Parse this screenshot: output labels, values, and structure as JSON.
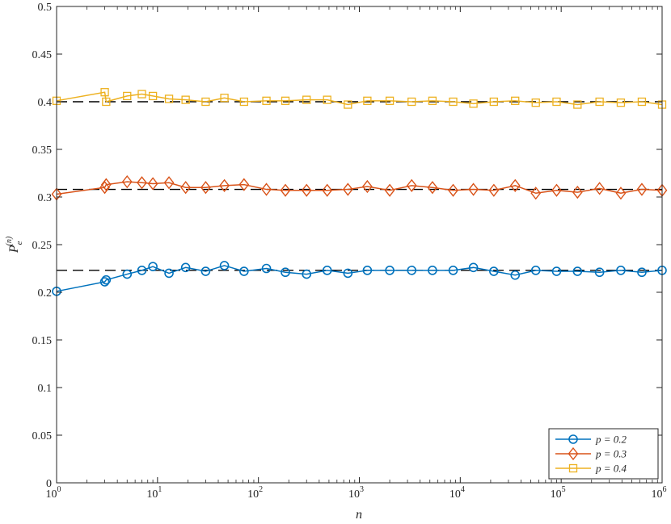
{
  "chart_data": {
    "type": "line",
    "title": "",
    "xlabel": "n",
    "ylabel": "P_e^(n)",
    "xscale": "log",
    "xlim": [
      1,
      1000000
    ],
    "ylim": [
      0,
      0.5
    ],
    "grid": false,
    "legend_position": "bottom-right",
    "x_ticks": [
      1,
      10,
      100,
      1000,
      10000,
      100000,
      1000000
    ],
    "x_tick_labels": [
      {
        "base": "10",
        "exp": "0"
      },
      {
        "base": "10",
        "exp": "1"
      },
      {
        "base": "10",
        "exp": "2"
      },
      {
        "base": "10",
        "exp": "3"
      },
      {
        "base": "10",
        "exp": "4"
      },
      {
        "base": "10",
        "exp": "5"
      },
      {
        "base": "10",
        "exp": "6"
      }
    ],
    "y_ticks": [
      0,
      0.05,
      0.1,
      0.15,
      0.2,
      0.25,
      0.3,
      0.35,
      0.4,
      0.45,
      0.5
    ],
    "y_tick_labels": [
      "0",
      "0.05",
      "0.1",
      "0.15",
      "0.2",
      "0.25",
      "0.3",
      "0.35",
      "0.4",
      "0.45",
      "0.5"
    ],
    "x": [
      1,
      3,
      3.1,
      5,
      7,
      9,
      13,
      19,
      30,
      46,
      72,
      120,
      185,
      300,
      480,
      770,
      1200,
      2000,
      3300,
      5300,
      8500,
      13500,
      21500,
      35000,
      56000,
      90000,
      145000,
      240000,
      390000,
      630000,
      1000000
    ],
    "series": [
      {
        "name": "p = 0.2",
        "color": "#0072BD",
        "marker": "circle",
        "values": [
          0.201,
          0.211,
          0.213,
          0.219,
          0.223,
          0.227,
          0.22,
          0.226,
          0.222,
          0.228,
          0.222,
          0.225,
          0.221,
          0.219,
          0.223,
          0.22,
          0.223,
          0.223,
          0.223,
          0.223,
          0.223,
          0.226,
          0.222,
          0.218,
          0.223,
          0.222,
          0.222,
          0.221,
          0.223,
          0.221,
          0.223
        ]
      },
      {
        "name": "p = 0.3",
        "color": "#D95319",
        "marker": "diamond",
        "values": [
          0.303,
          0.31,
          0.313,
          0.316,
          0.315,
          0.314,
          0.315,
          0.31,
          0.31,
          0.312,
          0.313,
          0.308,
          0.307,
          0.307,
          0.307,
          0.308,
          0.311,
          0.307,
          0.312,
          0.31,
          0.307,
          0.308,
          0.307,
          0.312,
          0.304,
          0.307,
          0.305,
          0.309,
          0.304,
          0.308,
          0.307
        ]
      },
      {
        "name": "p = 0.4",
        "color": "#EDB120",
        "marker": "square",
        "values": [
          0.401,
          0.41,
          0.4,
          0.406,
          0.408,
          0.406,
          0.403,
          0.402,
          0.4,
          0.404,
          0.4,
          0.401,
          0.401,
          0.402,
          0.402,
          0.397,
          0.401,
          0.401,
          0.4,
          0.401,
          0.4,
          0.398,
          0.4,
          0.401,
          0.399,
          0.4,
          0.397,
          0.4,
          0.399,
          0.4,
          0.397
        ]
      }
    ],
    "reference_lines": [
      {
        "y": 0.223,
        "style": "dashed",
        "color": "#000000"
      },
      {
        "y": 0.308,
        "style": "dashed",
        "color": "#000000"
      },
      {
        "y": 0.4,
        "style": "dashed",
        "color": "#000000"
      }
    ]
  }
}
